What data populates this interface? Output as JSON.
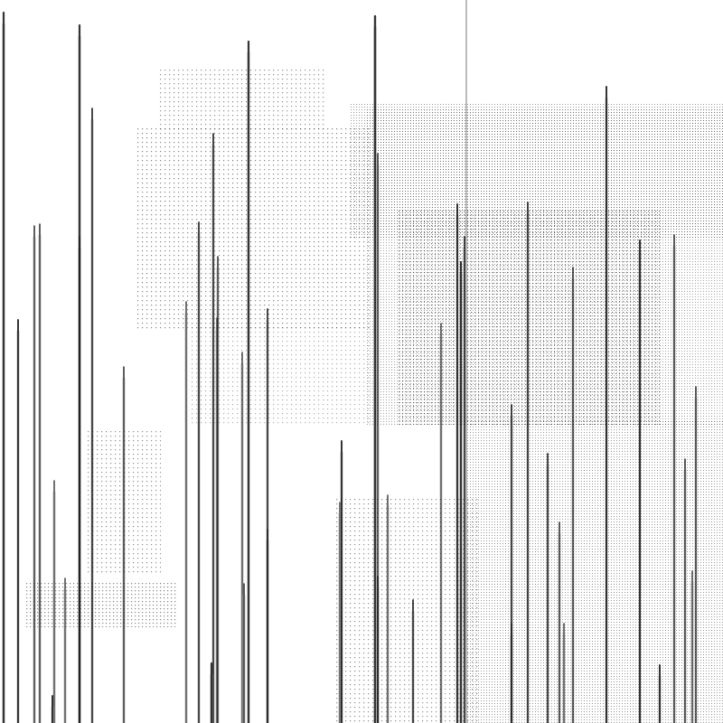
{
  "artwork": {
    "subject": "abstract",
    "colors": {
      "background": "#ffffff",
      "stroke": "#111111",
      "dot": "#333333",
      "divider": "#555555"
    }
  }
}
